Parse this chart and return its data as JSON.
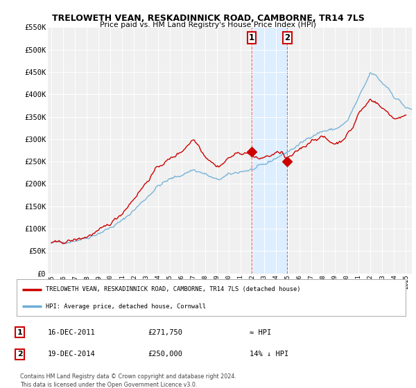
{
  "title": "TRELOWETH VEAN, RESKADINNICK ROAD, CAMBORNE, TR14 7LS",
  "subtitle": "Price paid vs. HM Land Registry's House Price Index (HPI)",
  "legend_line1": "TRELOWETH VEAN, RESKADINNICK ROAD, CAMBORNE, TR14 7LS (detached house)",
  "legend_line2": "HPI: Average price, detached house, Cornwall",
  "sale1_date": "16-DEC-2011",
  "sale1_price": "£271,750",
  "sale1_hpi": "≈ HPI",
  "sale2_date": "19-DEC-2014",
  "sale2_price": "£250,000",
  "sale2_hpi": "14% ↓ HPI",
  "footer": "Contains HM Land Registry data © Crown copyright and database right 2024.\nThis data is licensed under the Open Government Licence v3.0.",
  "background_color": "#ffffff",
  "plot_bg_color": "#f0f0f0",
  "hpi_color": "#6baed6",
  "sale_color": "#cc0000",
  "highlight_color": "#ddeeff",
  "ylim_min": 0,
  "ylim_max": 550000,
  "ytick_values": [
    0,
    50000,
    100000,
    150000,
    200000,
    250000,
    300000,
    350000,
    400000,
    450000,
    500000,
    550000
  ],
  "sale1_year": 2011.96,
  "sale1_price_val": 271750,
  "sale2_year": 2014.96,
  "sale2_price_val": 250000,
  "xmin": 1995,
  "xmax": 2025.5
}
